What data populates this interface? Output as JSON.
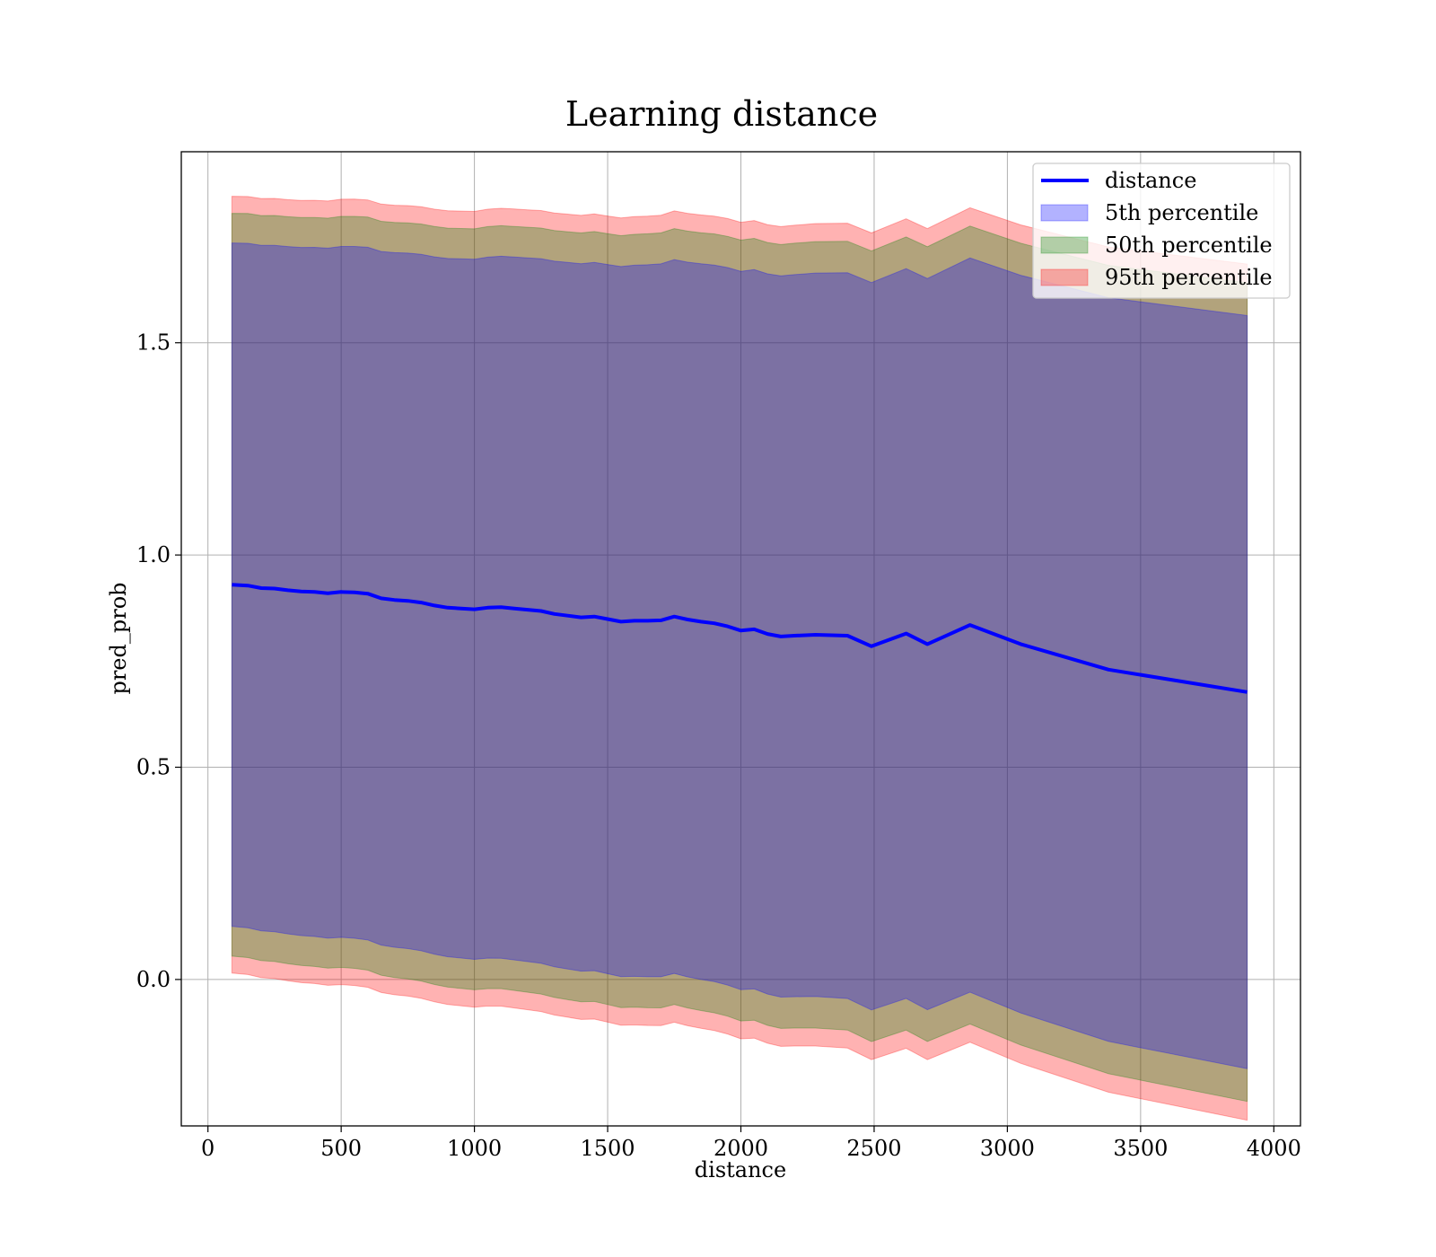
{
  "chart_data": {
    "type": "area",
    "title": "Learning distance",
    "xlabel": "distance",
    "ylabel": "pred_prob",
    "xlim": [
      -100,
      4100
    ],
    "ylim": [
      -0.345,
      1.95
    ],
    "x_ticks": [
      0,
      500,
      1000,
      1500,
      2000,
      2500,
      3000,
      3500,
      4000
    ],
    "x_tick_labels": [
      "0",
      "500",
      "1000",
      "1500",
      "2000",
      "2500",
      "3000",
      "3500",
      "4000"
    ],
    "y_ticks": [
      0.0,
      0.5,
      1.0,
      1.5
    ],
    "y_tick_labels": [
      "0.0",
      "0.5",
      "1.0",
      "1.5"
    ],
    "grid": true,
    "legend_position": "top-right",
    "x": [
      90,
      150,
      200,
      250,
      300,
      350,
      400,
      450,
      500,
      550,
      600,
      650,
      700,
      750,
      800,
      850,
      900,
      950,
      1000,
      1050,
      1100,
      1150,
      1200,
      1250,
      1300,
      1350,
      1400,
      1450,
      1500,
      1550,
      1600,
      1650,
      1700,
      1750,
      1800,
      1850,
      1900,
      1950,
      2000,
      2050,
      2100,
      2150,
      2200,
      2280,
      2400,
      2490,
      2620,
      2700,
      2860,
      3050,
      3380,
      3900
    ],
    "mean": [
      0.93,
      0.928,
      0.922,
      0.921,
      0.917,
      0.914,
      0.913,
      0.91,
      0.913,
      0.912,
      0.909,
      0.898,
      0.894,
      0.892,
      0.888,
      0.881,
      0.876,
      0.874,
      0.872,
      0.876,
      0.877,
      0.874,
      0.871,
      0.868,
      0.861,
      0.857,
      0.853,
      0.855,
      0.849,
      0.843,
      0.845,
      0.845,
      0.846,
      0.855,
      0.848,
      0.843,
      0.839,
      0.832,
      0.822,
      0.825,
      0.814,
      0.808,
      0.81,
      0.812,
      0.81,
      0.785,
      0.815,
      0.79,
      0.835,
      0.79,
      0.73,
      0.677
    ],
    "series": [
      {
        "name": "95th percentile",
        "color": "#ff0000",
        "opacity": 0.3,
        "half_width": 0.915
      },
      {
        "name": "50th percentile",
        "color": "#008000",
        "opacity": 0.3,
        "half_width": 0.875
      },
      {
        "name": "5th percentile",
        "color": "#0000ff",
        "opacity": 0.3,
        "half_width": 0.805
      }
    ],
    "line": {
      "name": "distance",
      "color": "#0000ff"
    },
    "legend": [
      "distance",
      "5th percentile",
      "50th percentile",
      "95th percentile"
    ]
  }
}
